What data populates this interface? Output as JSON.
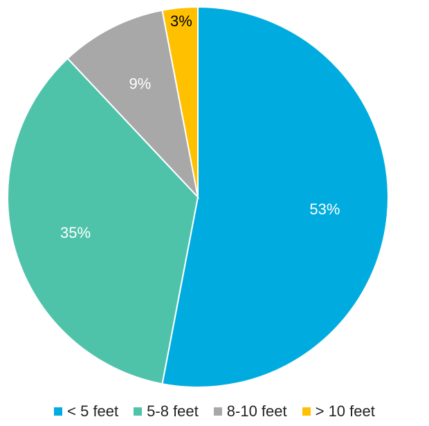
{
  "chart_data": {
    "type": "pie",
    "title": "",
    "categories": [
      "< 5 feet",
      "5-8 feet",
      "8-10 feet",
      "> 10 feet"
    ],
    "values": [
      53,
      35,
      9,
      3
    ],
    "value_labels": [
      "53%",
      "35%",
      "9%",
      "3%"
    ],
    "colors": [
      "#00ACDF",
      "#4FC3AA",
      "#A8A8A8",
      "#FFC000"
    ],
    "label_colors": [
      "#ffffff",
      "#ffffff",
      "#ffffff",
      "#000000"
    ],
    "legend_position": "bottom",
    "start_angle_deg": 0,
    "direction": "clockwise"
  }
}
